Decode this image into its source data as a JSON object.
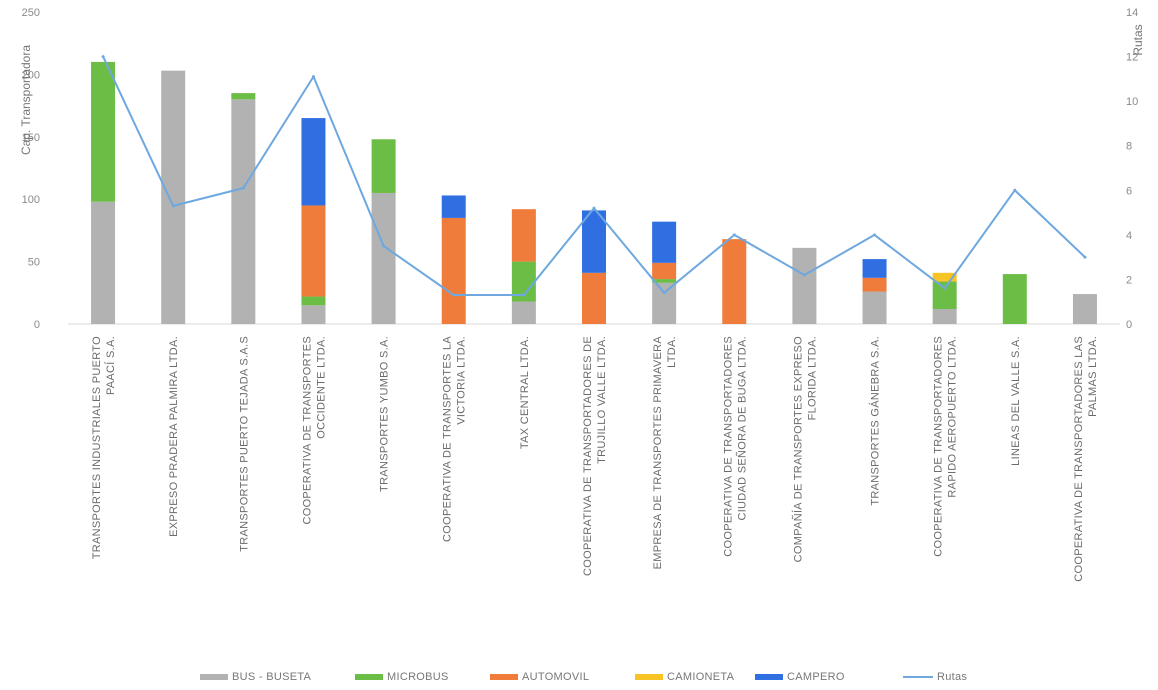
{
  "chart_data": {
    "type": "bar",
    "stacked": true,
    "ylabel": "Cap. Transportadora",
    "y2label": "Rutas",
    "ylim": [
      0,
      250
    ],
    "y2lim": [
      0,
      14
    ],
    "yticks": [
      "0",
      "50",
      "100",
      "150",
      "200",
      "250"
    ],
    "y2ticks": [
      "0",
      "2",
      "4",
      "6",
      "8",
      "10",
      "12",
      "14"
    ],
    "legend_position": "bottom",
    "categories": [
      [
        "TRANSPORTES INDUSTRIALES PUERTO",
        "PAACÍ S.A."
      ],
      [
        "EXPRESO PRADERA PALMIRA LTDA."
      ],
      [
        "TRANSPORTES PUERTO TEJADA S.A.S"
      ],
      [
        "COOPERATIVA DE TRANSPORTES",
        "OCCIDENTE LTDA."
      ],
      [
        "TRANSPORTES YUMBO S.A."
      ],
      [
        "COOPERATIVA DE TRANSPORTES LA",
        "VICTORIA LTDA."
      ],
      [
        "TAX CENTRAL LTDA."
      ],
      [
        "COOPERATIVA DE TRANSPORTADORES DE",
        "TRUJILLO VALLE LTDA."
      ],
      [
        "EMPRESA DE TRANSPORTES PRIMAVERA",
        "LTDA."
      ],
      [
        "COOPERATIVA DE TRANSPORTADORES",
        "CIUDAD SEÑORA DE BUGA LTDA."
      ],
      [
        "COMPAÑÍA DE TRANSPORTES EXPRESO",
        "FLORIDA LTDA."
      ],
      [
        "TRANSPORTES GÁNEBRA S.A."
      ],
      [
        "COOPERATIVA DE TRANSPORTADORES",
        "RAPIDO AEROPUERTO LTDA."
      ],
      [
        "LINEAS DEL VALLE S.A."
      ],
      [
        "COOPERATIVA DE TRANSPORTADORES LAS",
        "PALMAS LTDA."
      ]
    ],
    "series": [
      {
        "name": "BUS - BUSETA",
        "color": "#b2b2b2",
        "values": [
          98,
          203,
          180,
          15,
          105,
          0,
          18,
          0,
          33,
          0,
          61,
          26,
          12,
          0,
          24
        ]
      },
      {
        "name": "MICROBUS",
        "color": "#6bbd45",
        "values": [
          112,
          0,
          5,
          7,
          43,
          0,
          32,
          0,
          3,
          0,
          0,
          0,
          22,
          40,
          0
        ]
      },
      {
        "name": "AUTOMOVIL",
        "color": "#ef7c3a",
        "values": [
          0,
          0,
          0,
          73,
          0,
          85,
          42,
          41,
          13,
          68,
          0,
          11,
          0,
          0,
          0
        ]
      },
      {
        "name": "CAMIONETA",
        "color": "#f7c325",
        "values": [
          0,
          0,
          0,
          0,
          0,
          0,
          0,
          0,
          0,
          0,
          0,
          0,
          7,
          0,
          0
        ]
      },
      {
        "name": "CAMPERO",
        "color": "#2f6fe2",
        "values": [
          0,
          0,
          0,
          70,
          0,
          18,
          0,
          50,
          33,
          0,
          0,
          15,
          0,
          0,
          0
        ]
      }
    ],
    "line_series": {
      "name": "Rutas",
      "color": "#6ea8df",
      "axis": "right",
      "values": [
        12,
        5.3,
        6.1,
        11.1,
        3.5,
        1.3,
        1.3,
        5.2,
        1.4,
        4,
        2.2,
        4,
        1.6,
        6,
        3
      ]
    }
  }
}
